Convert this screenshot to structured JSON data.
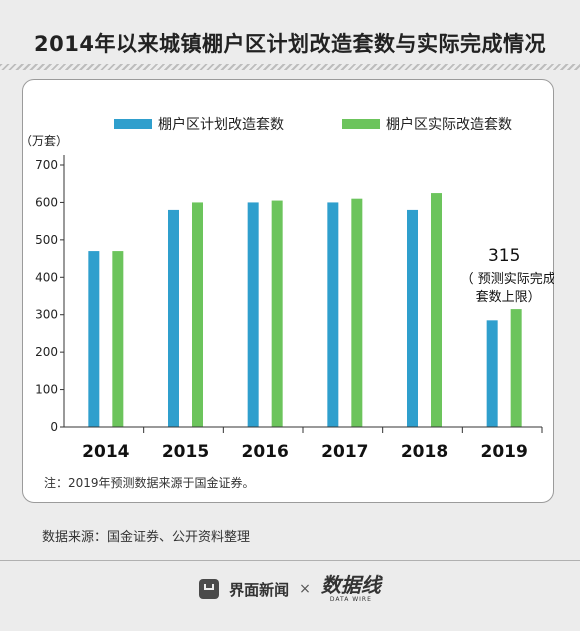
{
  "header": {
    "title": "2014年以来城镇棚户区计划改造套数与实际完成情况"
  },
  "chart_data": {
    "type": "bar",
    "ylabel": "（万套）",
    "ylim": [
      0,
      700
    ],
    "yticks": [
      0,
      100,
      200,
      300,
      400,
      500,
      600,
      700
    ],
    "categories": [
      "2014",
      "2015",
      "2016",
      "2017",
      "2018",
      "2019"
    ],
    "series": [
      {
        "name": "棚户区计划改造套数",
        "color": "#2f9fcd",
        "values": [
          470,
          580,
          600,
          600,
          580,
          285
        ]
      },
      {
        "name": "棚户区实际改造套数",
        "color": "#6cc45c",
        "values": [
          470,
          600,
          605,
          610,
          625,
          315
        ]
      }
    ],
    "annotation": {
      "value_label": "315",
      "lines": [
        "（ 预测实际完成",
        "套数上限）"
      ]
    },
    "legend_position": "top",
    "grid": false,
    "note": "注：2019年预测数据来源于国金证券。"
  },
  "footer": {
    "source": "数据来源：国金证券、公开资料整理",
    "brand_name": "界面新闻",
    "cross": "×",
    "brand2_name": "数据线",
    "brand2_sub": "DATA WIRE"
  }
}
